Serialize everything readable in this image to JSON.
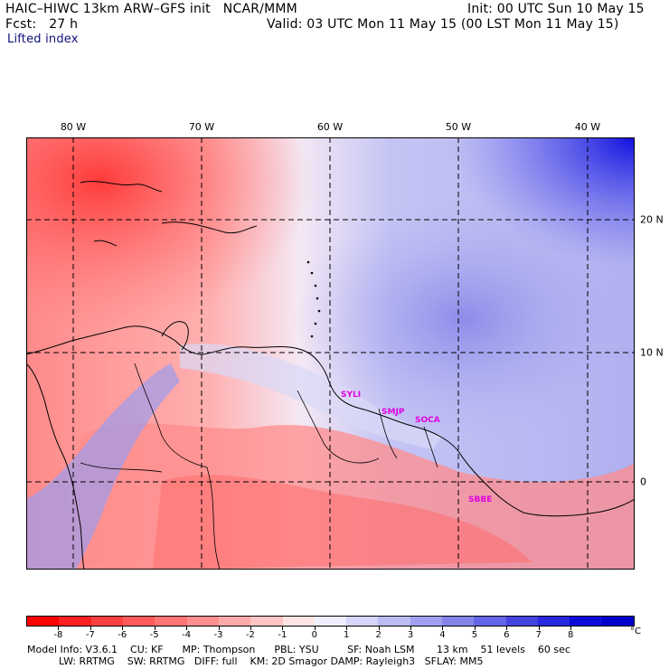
{
  "header": {
    "title": "HAIC–HIWC 13km ARW–GFS init   NCAR/MMM",
    "init": "Init: 00 UTC Sun 10 May 15",
    "fcst": "Fcst:   27 h",
    "valid": "Valid: 03 UTC Mon 11 May 15 (00 LST Mon 11 May 15)",
    "field": "Lifted index"
  },
  "map": {
    "longitude_labels": [
      "80 W",
      "70 W",
      "60 W",
      "50 W",
      "40 W"
    ],
    "latitude_labels": [
      "20 N",
      "10 N",
      "0"
    ],
    "site_labels": [
      "SYLI",
      "SMJP",
      "SOCA",
      "SBBE"
    ]
  },
  "colorbar": {
    "tick_labels": [
      "-8",
      "-7",
      "-6",
      "-5",
      "-4",
      "-3",
      "-2",
      "-1",
      "0",
      "1",
      "2",
      "3",
      "4",
      "5",
      "6",
      "7",
      "8"
    ],
    "unit": "°C",
    "colors": [
      "#ff0000",
      "#ff2020",
      "#ff4040",
      "#ff5a5a",
      "#ff7474",
      "#ff8e8e",
      "#ffaaaa",
      "#ffc6c6",
      "#ffe4e4",
      "#eeeeff",
      "#d6d6fa",
      "#bcbcf5",
      "#a0a0f0",
      "#8484ea",
      "#6464e6",
      "#4444e0",
      "#2828de",
      "#0c0cd8",
      "#0000cc"
    ]
  },
  "footer": {
    "line1": "Model Info: V3.6.1    CU: KF      MP: Thompson      PBL: YSU         SF: Noah LSM       13 km    51 levels    60 sec",
    "line2": "          LW: RRTMG    SW: RRTMG   DIFF: full    KM: 2D Smagor DAMP: Rayleigh3   SFLAY: MM5"
  }
}
